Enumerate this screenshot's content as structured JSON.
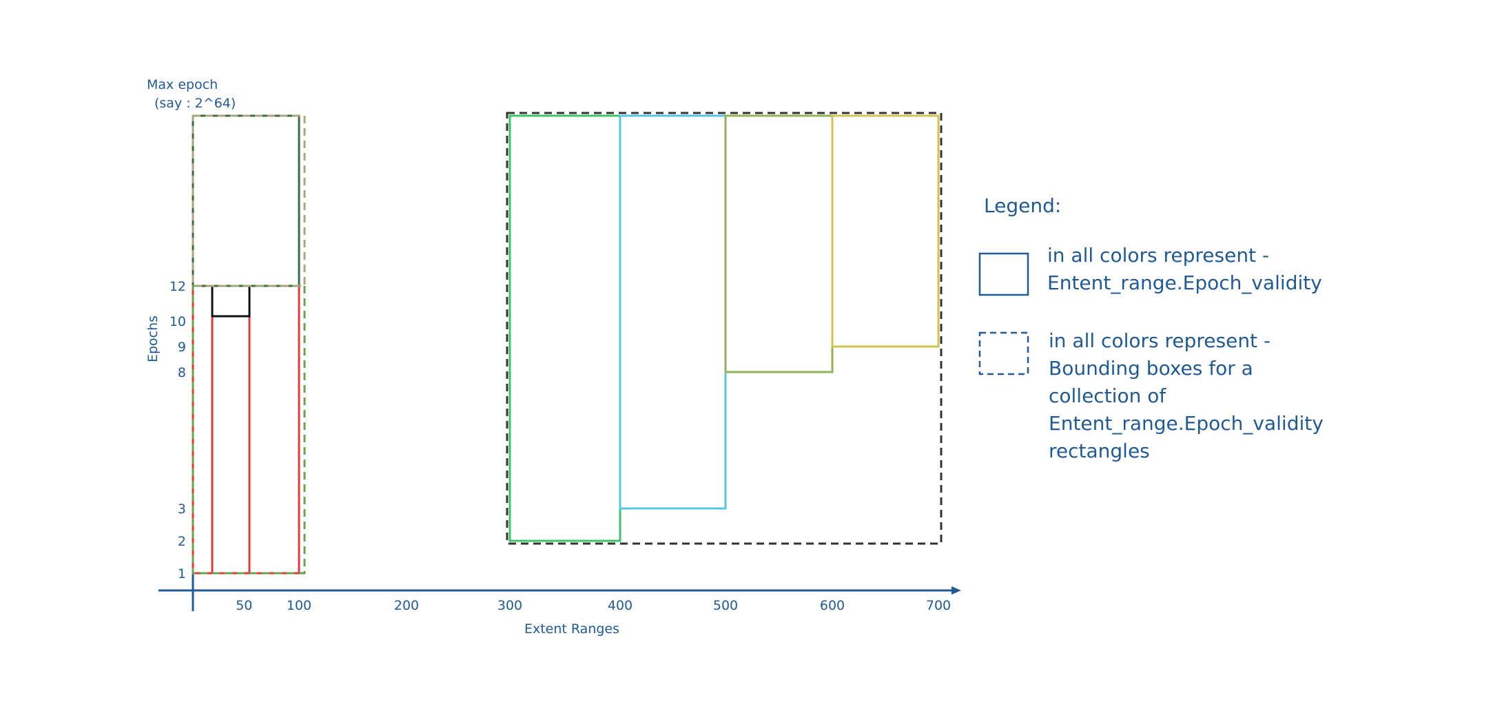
{
  "axes": {
    "x_title": "Extent Ranges",
    "y_title": "Epochs",
    "x_ticks": [
      {
        "value": 50,
        "label": "50"
      },
      {
        "value": 100,
        "label": "100"
      },
      {
        "value": 200,
        "label": "200"
      },
      {
        "value": 300,
        "label": "300"
      },
      {
        "value": 400,
        "label": "400"
      },
      {
        "value": 500,
        "label": "500"
      },
      {
        "value": 600,
        "label": "600"
      },
      {
        "value": 700,
        "label": "700"
      }
    ],
    "y_ticks": [
      {
        "value": 1,
        "label": "1"
      },
      {
        "value": 2,
        "label": "2"
      },
      {
        "value": 3,
        "label": "3"
      },
      {
        "value": 8,
        "label": "8"
      },
      {
        "value": 9,
        "label": "9"
      },
      {
        "value": 10,
        "label": "10"
      },
      {
        "value": 12,
        "label": "12"
      }
    ],
    "max_epoch_label_1": "Max epoch",
    "max_epoch_label_2": "(say : 2^64)"
  },
  "rectangles": [
    {
      "kind": "validity",
      "color": "#e03a3a",
      "x0": 0,
      "x1": 100,
      "y0": 1,
      "y1": 12
    },
    {
      "kind": "validity",
      "color": "#e03a3a",
      "x0": 20,
      "x1": 55,
      "y0": 1,
      "y1": 12
    },
    {
      "kind": "validity",
      "color": "#111111",
      "x0": 20,
      "x1": 55,
      "y0": 11,
      "y1": 12
    },
    {
      "kind": "validity",
      "color": "#3a6b45",
      "x0": 0,
      "x1": 100,
      "y0": 12,
      "y1": "max"
    },
    {
      "kind": "validity",
      "color": "#3ec36a",
      "x0": 300,
      "x1": 400,
      "y0": 2,
      "y1": "max"
    },
    {
      "kind": "validity",
      "color": "#54c7e8",
      "x0": 400,
      "x1": 500,
      "y0": 3,
      "y1": "max"
    },
    {
      "kind": "validity",
      "color": "#8fb35a",
      "x0": 500,
      "x1": 600,
      "y0": 8,
      "y1": "max"
    },
    {
      "kind": "validity",
      "color": "#d2c24e",
      "x0": 600,
      "x1": 700,
      "y0": 9,
      "y1": "max"
    },
    {
      "kind": "bounding",
      "color": "#6ba24c",
      "x0": 0,
      "x1": 100,
      "y0": 1,
      "y1": 12
    },
    {
      "kind": "bounding",
      "color": "#a8a57a",
      "x0": 0,
      "x1": 100,
      "y0": 12,
      "y1": "max"
    },
    {
      "kind": "bounding",
      "color": "#333333",
      "x0": 300,
      "x1": 700,
      "y0": 2,
      "y1": "max"
    }
  ],
  "legend": {
    "title": "Legend:",
    "solid_line1": "in all colors represent -",
    "solid_line2": "Entent_range.Epoch_validity",
    "dashed_line1": "in all colors represent -",
    "dashed_line2": "Bounding boxes for a",
    "dashed_line3": "collection of",
    "dashed_line4": "Entent_range.Epoch_validity",
    "dashed_line5": "rectangles",
    "color": "#1f5a96"
  }
}
